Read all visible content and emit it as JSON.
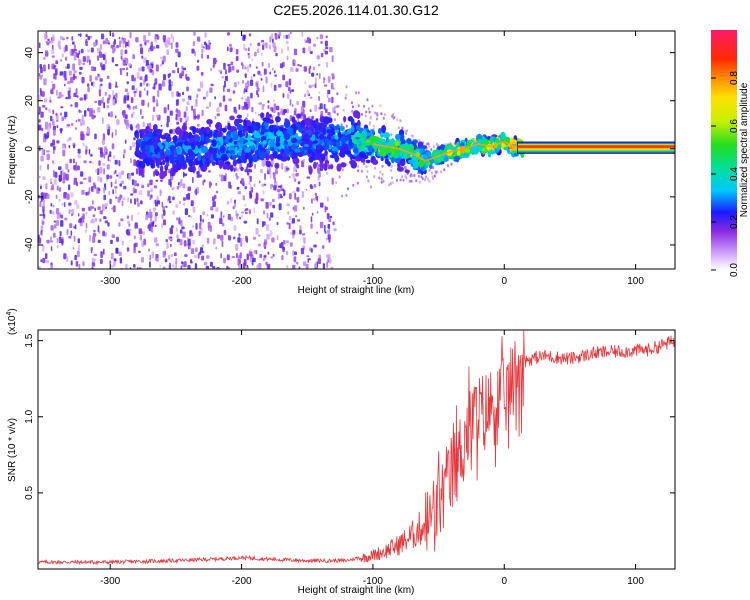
{
  "title": "C2E5.2026.114.01.30.G12",
  "chart_data": [
    {
      "type": "heatmap",
      "id": "spectrogram",
      "xlabel": "Height of straight line (km)",
      "ylabel": "Frequency (Hz)",
      "xlim": [
        -355,
        130
      ],
      "ylim": [
        -50,
        49
      ],
      "xticks": [
        -300,
        -200,
        -100,
        0,
        100
      ],
      "xtick_labels": [
        "-300",
        "-200",
        "-100",
        "0",
        "100"
      ],
      "yticks": [
        -40,
        -20,
        0,
        20,
        40
      ],
      "ytick_labels": [
        "-40",
        "-20",
        "0",
        "20",
        "40"
      ],
      "colorbar": {
        "label": "Normalized spectral amplitude",
        "range": [
          0,
          1
        ],
        "ticks": [
          0.0,
          0.2,
          0.4,
          0.6,
          0.8
        ],
        "tick_labels": [
          "0.0",
          "0.2",
          "0.4",
          "0.6",
          "0.8"
        ]
      },
      "ridge": {
        "description": "dominant frequency track",
        "x": [
          -270,
          -240,
          -210,
          -180,
          -150,
          -120,
          -100,
          -90,
          -80,
          -70,
          -60,
          -50,
          -40,
          -30,
          -20,
          -10,
          0,
          10,
          130
        ],
        "y": [
          0,
          0,
          2,
          4,
          3,
          4,
          2,
          1,
          0,
          -2,
          -5,
          -3,
          -1,
          0,
          2,
          1,
          3,
          0.5,
          0.5
        ],
        "amplitude": [
          0.3,
          0.3,
          0.35,
          0.35,
          0.3,
          0.35,
          0.55,
          0.6,
          0.55,
          0.5,
          0.55,
          0.6,
          0.65,
          0.7,
          0.75,
          0.8,
          0.85,
          0.95,
          1.0
        ]
      }
    },
    {
      "type": "line",
      "id": "snr",
      "xlabel": "Height of straight line (km)",
      "ylabel": "SNR (10 * v/v)",
      "multiplier_label": "(x10",
      "multiplier_exp": "4",
      "xlim": [
        -355,
        130
      ],
      "ylim": [
        0,
        1.57
      ],
      "xticks": [
        -300,
        -200,
        -100,
        0,
        100
      ],
      "xtick_labels": [
        "-300",
        "-200",
        "-100",
        "0",
        "100"
      ],
      "yticks": [
        0.5,
        1.0,
        1.5
      ],
      "ytick_labels": [
        "0.5",
        "1.0",
        "1.5"
      ],
      "color": "#e8363a",
      "series": [
        {
          "name": "SNR",
          "x": [
            -355,
            -300,
            -250,
            -220,
            -200,
            -180,
            -150,
            -120,
            -110,
            -100,
            -90,
            -80,
            -70,
            -60,
            -50,
            -45,
            -40,
            -35,
            -30,
            -25,
            -20,
            -15,
            -10,
            -5,
            0,
            5,
            10,
            20,
            30,
            50,
            70,
            90,
            110,
            120,
            130
          ],
          "y": [
            0.04,
            0.04,
            0.05,
            0.06,
            0.07,
            0.06,
            0.05,
            0.05,
            0.07,
            0.09,
            0.12,
            0.16,
            0.22,
            0.3,
            0.45,
            0.55,
            0.65,
            0.75,
            0.9,
            1.0,
            1.05,
            1.05,
            1.1,
            1.12,
            1.15,
            1.22,
            1.35,
            1.38,
            1.4,
            1.38,
            1.42,
            1.43,
            1.44,
            1.47,
            1.5
          ]
        }
      ]
    }
  ]
}
